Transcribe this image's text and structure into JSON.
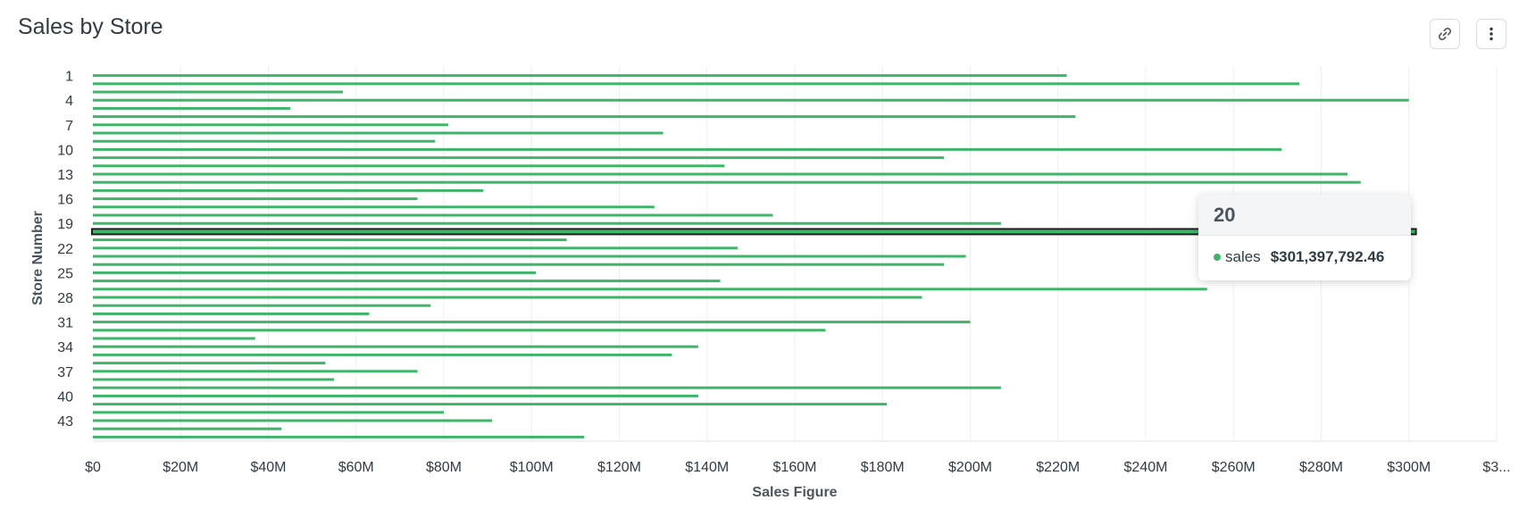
{
  "header": {
    "title": "Sales by Store",
    "link_icon": "link-icon",
    "menu_icon": "more-vertical-icon"
  },
  "colors": {
    "bar": "#3fb56a",
    "grid": "#eceff1",
    "highlight_outline": "#1f1f1f",
    "text": "#2f3b45"
  },
  "tooltip": {
    "title": "20",
    "series_name": "sales",
    "value": "$301,397,792.46"
  },
  "chart_data": {
    "type": "bar",
    "orientation": "horizontal",
    "xlabel": "Sales Figure",
    "ylabel": "Store Number",
    "xlim": [
      0,
      320000000
    ],
    "x_tick_labels": [
      "$0",
      "$20M",
      "$40M",
      "$60M",
      "$80M",
      "$100M",
      "$120M",
      "$140M",
      "$160M",
      "$180M",
      "$200M",
      "$220M",
      "$240M",
      "$260M",
      "$280M",
      "$300M",
      "$3..."
    ],
    "categories": [
      "1",
      "2",
      "3",
      "4",
      "5",
      "6",
      "7",
      "8",
      "9",
      "10",
      "11",
      "12",
      "13",
      "14",
      "15",
      "16",
      "17",
      "18",
      "19",
      "20",
      "21",
      "22",
      "23",
      "24",
      "25",
      "26",
      "27",
      "28",
      "29",
      "30",
      "31",
      "32",
      "33",
      "34",
      "35",
      "36",
      "37",
      "38",
      "39",
      "40",
      "41",
      "42",
      "43",
      "44",
      "45"
    ],
    "category_tick_labels": [
      "1",
      "4",
      "7",
      "10",
      "13",
      "16",
      "19",
      "22",
      "25",
      "28",
      "31",
      "34",
      "37",
      "40",
      "43"
    ],
    "highlighted_category": "20",
    "grid": true,
    "series": [
      {
        "name": "sales",
        "values": [
          222000000,
          275000000,
          57000000,
          300000000,
          45000000,
          224000000,
          81000000,
          130000000,
          78000000,
          271000000,
          194000000,
          144000000,
          286000000,
          289000000,
          89000000,
          74000000,
          128000000,
          155000000,
          207000000,
          301397792.46,
          108000000,
          147000000,
          199000000,
          194000000,
          101000000,
          143000000,
          254000000,
          189000000,
          77000000,
          63000000,
          200000000,
          167000000,
          37000000,
          138000000,
          132000000,
          53000000,
          74000000,
          55000000,
          207000000,
          138000000,
          181000000,
          80000000,
          91000000,
          43000000,
          112000000
        ]
      }
    ]
  }
}
